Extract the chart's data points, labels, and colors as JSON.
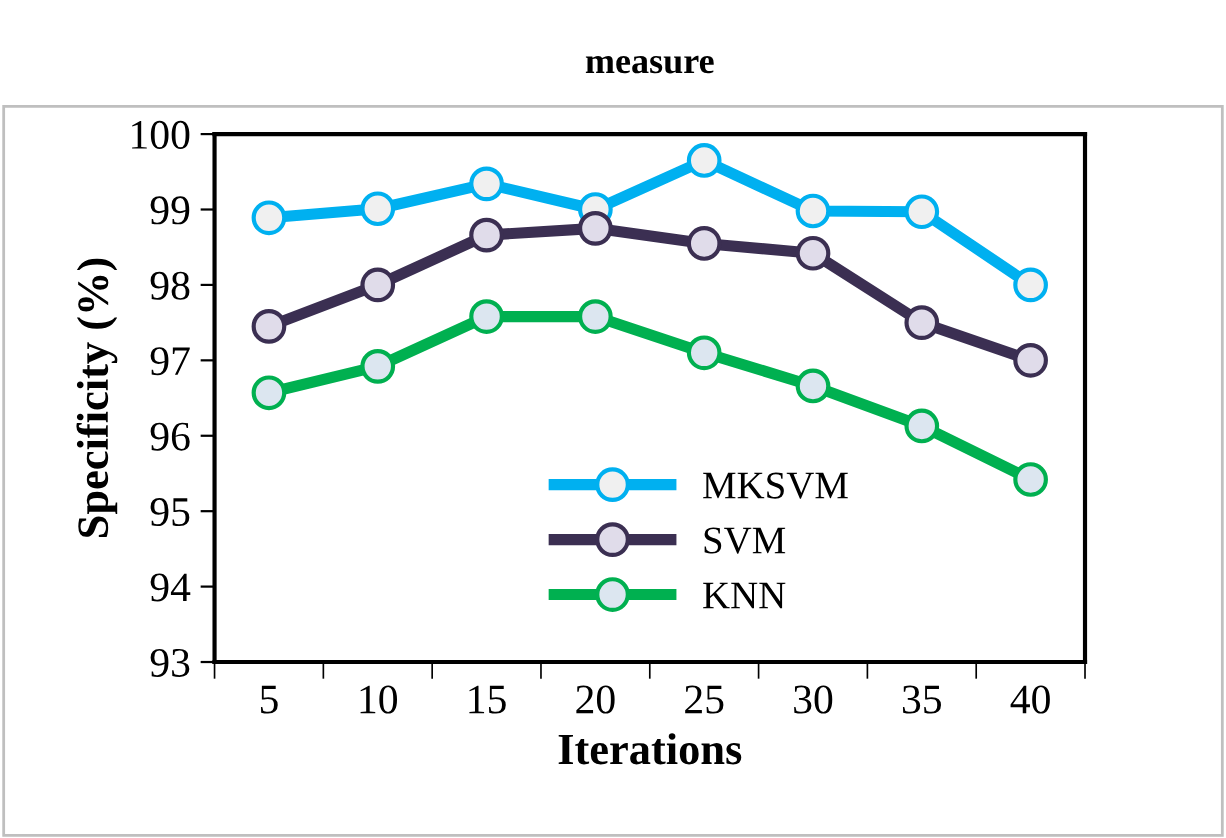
{
  "chart_data": {
    "type": "line",
    "title": "measure",
    "xlabel": "Iterations",
    "ylabel": "Specificity (%)",
    "categories": [
      "5",
      "10",
      "15",
      "20",
      "25",
      "30",
      "35",
      "40"
    ],
    "series": [
      {
        "name": "MKSVM",
        "color": "#00b0f0",
        "values": [
          98.89,
          99.01,
          99.34,
          99.0,
          99.65,
          98.98,
          98.97,
          98.0
        ]
      },
      {
        "name": "SVM",
        "color": "#3b2f52",
        "values": [
          97.45,
          98.0,
          98.66,
          98.75,
          98.55,
          98.42,
          97.5,
          97.0
        ]
      },
      {
        "name": "KNN",
        "color": "#00b050",
        "values": [
          96.57,
          96.92,
          97.58,
          97.58,
          97.1,
          96.66,
          96.13,
          95.42
        ]
      }
    ],
    "ylim": [
      93,
      100
    ],
    "yticks": [
      93,
      94,
      95,
      96,
      97,
      98,
      99,
      100
    ],
    "grid": false,
    "legend": "bottom right",
    "marker": "circle",
    "line_style": "solid"
  }
}
